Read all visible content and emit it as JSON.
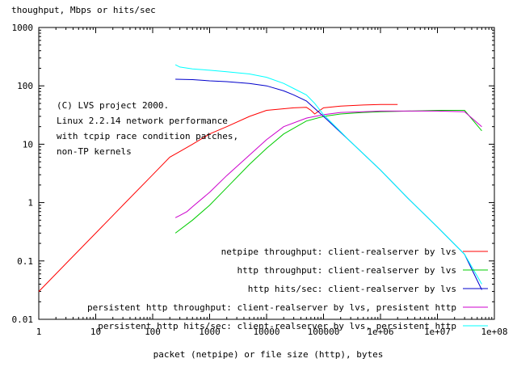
{
  "chart_data": {
    "type": "line",
    "title": "",
    "ylabel": "thoughput, Mbps or hits/sec",
    "xlabel": "packet (netpipe) or file size (http), bytes",
    "x_scale": "log",
    "y_scale": "log",
    "xlim": [
      1,
      100000000
    ],
    "ylim": [
      0.01,
      1000
    ],
    "x_ticks": [
      {
        "value": 1,
        "label": "1"
      },
      {
        "value": 10,
        "label": "10"
      },
      {
        "value": 100,
        "label": "100"
      },
      {
        "value": 1000,
        "label": "1000"
      },
      {
        "value": 10000,
        "label": "10000"
      },
      {
        "value": 100000,
        "label": "100000"
      },
      {
        "value": 1000000,
        "label": "1e+06"
      },
      {
        "value": 10000000,
        "label": "1e+07"
      },
      {
        "value": 100000000,
        "label": "1e+08"
      }
    ],
    "y_ticks": [
      {
        "value": 0.01,
        "label": "0.01"
      },
      {
        "value": 0.1,
        "label": "0.1"
      },
      {
        "value": 1,
        "label": "1"
      },
      {
        "value": 10,
        "label": "10"
      },
      {
        "value": 100,
        "label": "100"
      },
      {
        "value": 1000,
        "label": "1000"
      }
    ],
    "annotation": [
      "(C) LVS project 2000.",
      "Linux 2.2.14 network performance",
      "with tcpip race condition patches,",
      "non-TP kernels"
    ],
    "legend_position": "bottom-right",
    "grid": false,
    "series": [
      {
        "name": "netpipe throughput: client-realserver by lvs",
        "color": "#ff0000",
        "x": [
          1,
          3,
          10,
          30,
          100,
          200,
          300,
          500,
          1000,
          2000,
          5000,
          10000,
          30000,
          50000,
          60000,
          70000,
          100000,
          200000,
          500000,
          1000000,
          2000000
        ],
        "y": [
          0.03,
          0.09,
          0.3,
          0.9,
          3,
          6,
          7.5,
          10,
          15,
          20,
          30,
          38,
          42,
          43,
          38,
          33,
          42,
          45,
          47,
          48,
          48
        ]
      },
      {
        "name": "http throughput: client-realserver by lvs",
        "color": "#00cc00",
        "x": [
          250,
          500,
          1000,
          2000,
          5000,
          10000,
          20000,
          50000,
          100000,
          200000,
          500000,
          1000000,
          3000000,
          10000000,
          30000000,
          60000000
        ],
        "y": [
          0.3,
          0.5,
          0.9,
          1.8,
          4.5,
          8.5,
          15,
          25,
          30,
          33,
          35,
          36,
          37,
          38,
          38,
          17
        ]
      },
      {
        "name": "http hits/sec: client-realserver by lvs",
        "color": "#0000cc",
        "x": [
          250,
          500,
          1000,
          2000,
          5000,
          10000,
          20000,
          30000,
          50000,
          100000,
          300000,
          1000000,
          3000000,
          10000000,
          30000000,
          60000000
        ],
        "y": [
          130,
          128,
          122,
          118,
          110,
          100,
          82,
          70,
          55,
          30,
          11,
          3.6,
          1.2,
          0.38,
          0.13,
          0.032
        ]
      },
      {
        "name": "persistent http throughput: client-realserver by lvs, presistent http",
        "color": "#cc00cc",
        "x": [
          250,
          300,
          400,
          500,
          1000,
          2000,
          5000,
          10000,
          20000,
          50000,
          100000,
          200000,
          500000,
          1000000,
          3000000,
          10000000,
          30000000,
          60000000
        ],
        "y": [
          0.55,
          0.6,
          0.7,
          0.85,
          1.5,
          2.9,
          6.5,
          12,
          20,
          28,
          32,
          35,
          36,
          37,
          37,
          37,
          36,
          20
        ]
      },
      {
        "name": "persistent http hits/sec: client-realserver by lvs, persistent http",
        "color": "#00ffff",
        "x": [
          250,
          300,
          500,
          1000,
          2000,
          5000,
          10000,
          20000,
          30000,
          50000,
          70000,
          100000,
          300000,
          1000000,
          3000000,
          10000000,
          30000000,
          60000000
        ],
        "y": [
          230,
          210,
          195,
          185,
          175,
          160,
          140,
          110,
          90,
          70,
          50,
          32,
          11,
          3.6,
          1.2,
          0.38,
          0.13,
          0.04
        ]
      }
    ]
  }
}
